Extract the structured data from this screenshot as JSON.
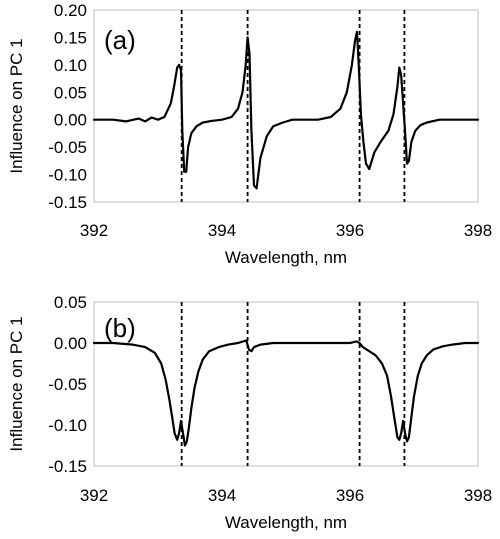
{
  "chart_data": [
    {
      "type": "line",
      "panel_label": "(a)",
      "xlabel": "Wavelength, nm",
      "ylabel": "Influence on PC 1",
      "xlim": [
        392,
        398
      ],
      "ylim": [
        -0.15,
        0.2
      ],
      "x_ticks": [
        392,
        394,
        396,
        398
      ],
      "x_tick_labels": [
        "392",
        "394",
        "396",
        "398"
      ],
      "y_ticks": [
        0.2,
        0.15,
        0.1,
        0.05,
        0.0,
        -0.05,
        -0.1,
        -0.15
      ],
      "y_tick_labels": [
        "0.20",
        "0.15",
        "0.10",
        "0.05",
        "0.00",
        "-0.05",
        "-0.10",
        "-0.15"
      ],
      "grid": false,
      "reference_lines_x": [
        393.37,
        394.4,
        396.15,
        396.85
      ],
      "series": [
        {
          "x": [
            392.0,
            392.3,
            392.5,
            392.7,
            392.8,
            392.9,
            393.0,
            393.1,
            393.2,
            393.25,
            393.3,
            393.33,
            393.36,
            393.38,
            393.41,
            393.44,
            393.47,
            393.52,
            393.6,
            393.7,
            393.85,
            394.0,
            394.15,
            394.25,
            394.32,
            394.37,
            394.4,
            394.43,
            394.46,
            394.5,
            394.54,
            394.6,
            394.7,
            394.8,
            394.95,
            395.1,
            395.3,
            395.5,
            395.7,
            395.85,
            395.95,
            396.03,
            396.08,
            396.11,
            396.14,
            396.17,
            396.21,
            396.25,
            396.3,
            396.38,
            396.48,
            396.6,
            396.68,
            396.74,
            396.77,
            396.8,
            396.83,
            396.86,
            396.89,
            396.92,
            396.96,
            397.02,
            397.1,
            397.2,
            397.4,
            397.6,
            397.8,
            398.0
          ],
          "y": [
            0.0,
            0.0,
            -0.003,
            0.002,
            -0.003,
            0.004,
            0.0,
            0.005,
            0.03,
            0.06,
            0.095,
            0.1,
            0.09,
            -0.02,
            -0.095,
            -0.095,
            -0.05,
            -0.025,
            -0.012,
            -0.005,
            -0.002,
            0.0,
            0.005,
            0.02,
            0.05,
            0.1,
            0.15,
            0.12,
            -0.02,
            -0.12,
            -0.125,
            -0.07,
            -0.03,
            -0.012,
            -0.005,
            0.0,
            0.0,
            0.0,
            0.005,
            0.02,
            0.05,
            0.1,
            0.145,
            0.16,
            0.09,
            0.01,
            -0.04,
            -0.08,
            -0.09,
            -0.06,
            -0.04,
            -0.02,
            0.01,
            0.06,
            0.095,
            0.08,
            0.03,
            -0.02,
            -0.08,
            -0.075,
            -0.04,
            -0.02,
            -0.01,
            -0.005,
            0.0,
            0.0,
            0.0,
            0.0
          ]
        }
      ]
    },
    {
      "type": "line",
      "panel_label": "(b)",
      "xlabel": "Wavelength, nm",
      "ylabel": "Influence on PC 1",
      "xlim": [
        392,
        398
      ],
      "ylim": [
        -0.15,
        0.05
      ],
      "x_ticks": [
        392,
        394,
        396,
        398
      ],
      "x_tick_labels": [
        "392",
        "394",
        "396",
        "398"
      ],
      "y_ticks": [
        0.05,
        0.0,
        -0.05,
        -0.1,
        -0.15
      ],
      "y_tick_labels": [
        "0.05",
        "0.00",
        "-0.05",
        "-0.10",
        "-0.15"
      ],
      "grid": false,
      "reference_lines_x": [
        393.37,
        394.4,
        396.15,
        396.85
      ],
      "series": [
        {
          "x": [
            392.0,
            392.3,
            392.6,
            392.8,
            392.95,
            393.05,
            393.12,
            393.18,
            393.22,
            393.26,
            393.3,
            393.33,
            393.36,
            393.39,
            393.42,
            393.45,
            393.48,
            393.52,
            393.57,
            393.63,
            393.7,
            393.8,
            393.95,
            394.1,
            394.25,
            394.38,
            394.42,
            394.46,
            394.5,
            394.6,
            394.8,
            395.0,
            395.2,
            395.4,
            395.6,
            395.8,
            396.0,
            396.1,
            396.15,
            396.2,
            396.3,
            396.4,
            396.5,
            396.58,
            396.64,
            396.7,
            396.74,
            396.77,
            396.8,
            396.83,
            396.86,
            396.89,
            396.92,
            396.96,
            397.0,
            397.06,
            397.12,
            397.2,
            397.3,
            397.45,
            397.6,
            397.8,
            398.0
          ],
          "y": [
            0.0,
            0.0,
            -0.002,
            -0.005,
            -0.012,
            -0.025,
            -0.045,
            -0.07,
            -0.09,
            -0.11,
            -0.118,
            -0.11,
            -0.095,
            -0.11,
            -0.125,
            -0.12,
            -0.105,
            -0.08,
            -0.055,
            -0.035,
            -0.02,
            -0.01,
            -0.005,
            -0.002,
            0.0,
            0.003,
            -0.008,
            -0.01,
            -0.005,
            -0.002,
            0.0,
            0.0,
            0.0,
            0.0,
            0.0,
            0.0,
            0.0,
            0.002,
            0.0,
            -0.005,
            -0.01,
            -0.015,
            -0.025,
            -0.04,
            -0.065,
            -0.095,
            -0.115,
            -0.118,
            -0.11,
            -0.095,
            -0.11,
            -0.12,
            -0.115,
            -0.09,
            -0.065,
            -0.04,
            -0.025,
            -0.015,
            -0.008,
            -0.004,
            -0.002,
            0.0,
            0.0
          ]
        }
      ]
    }
  ]
}
